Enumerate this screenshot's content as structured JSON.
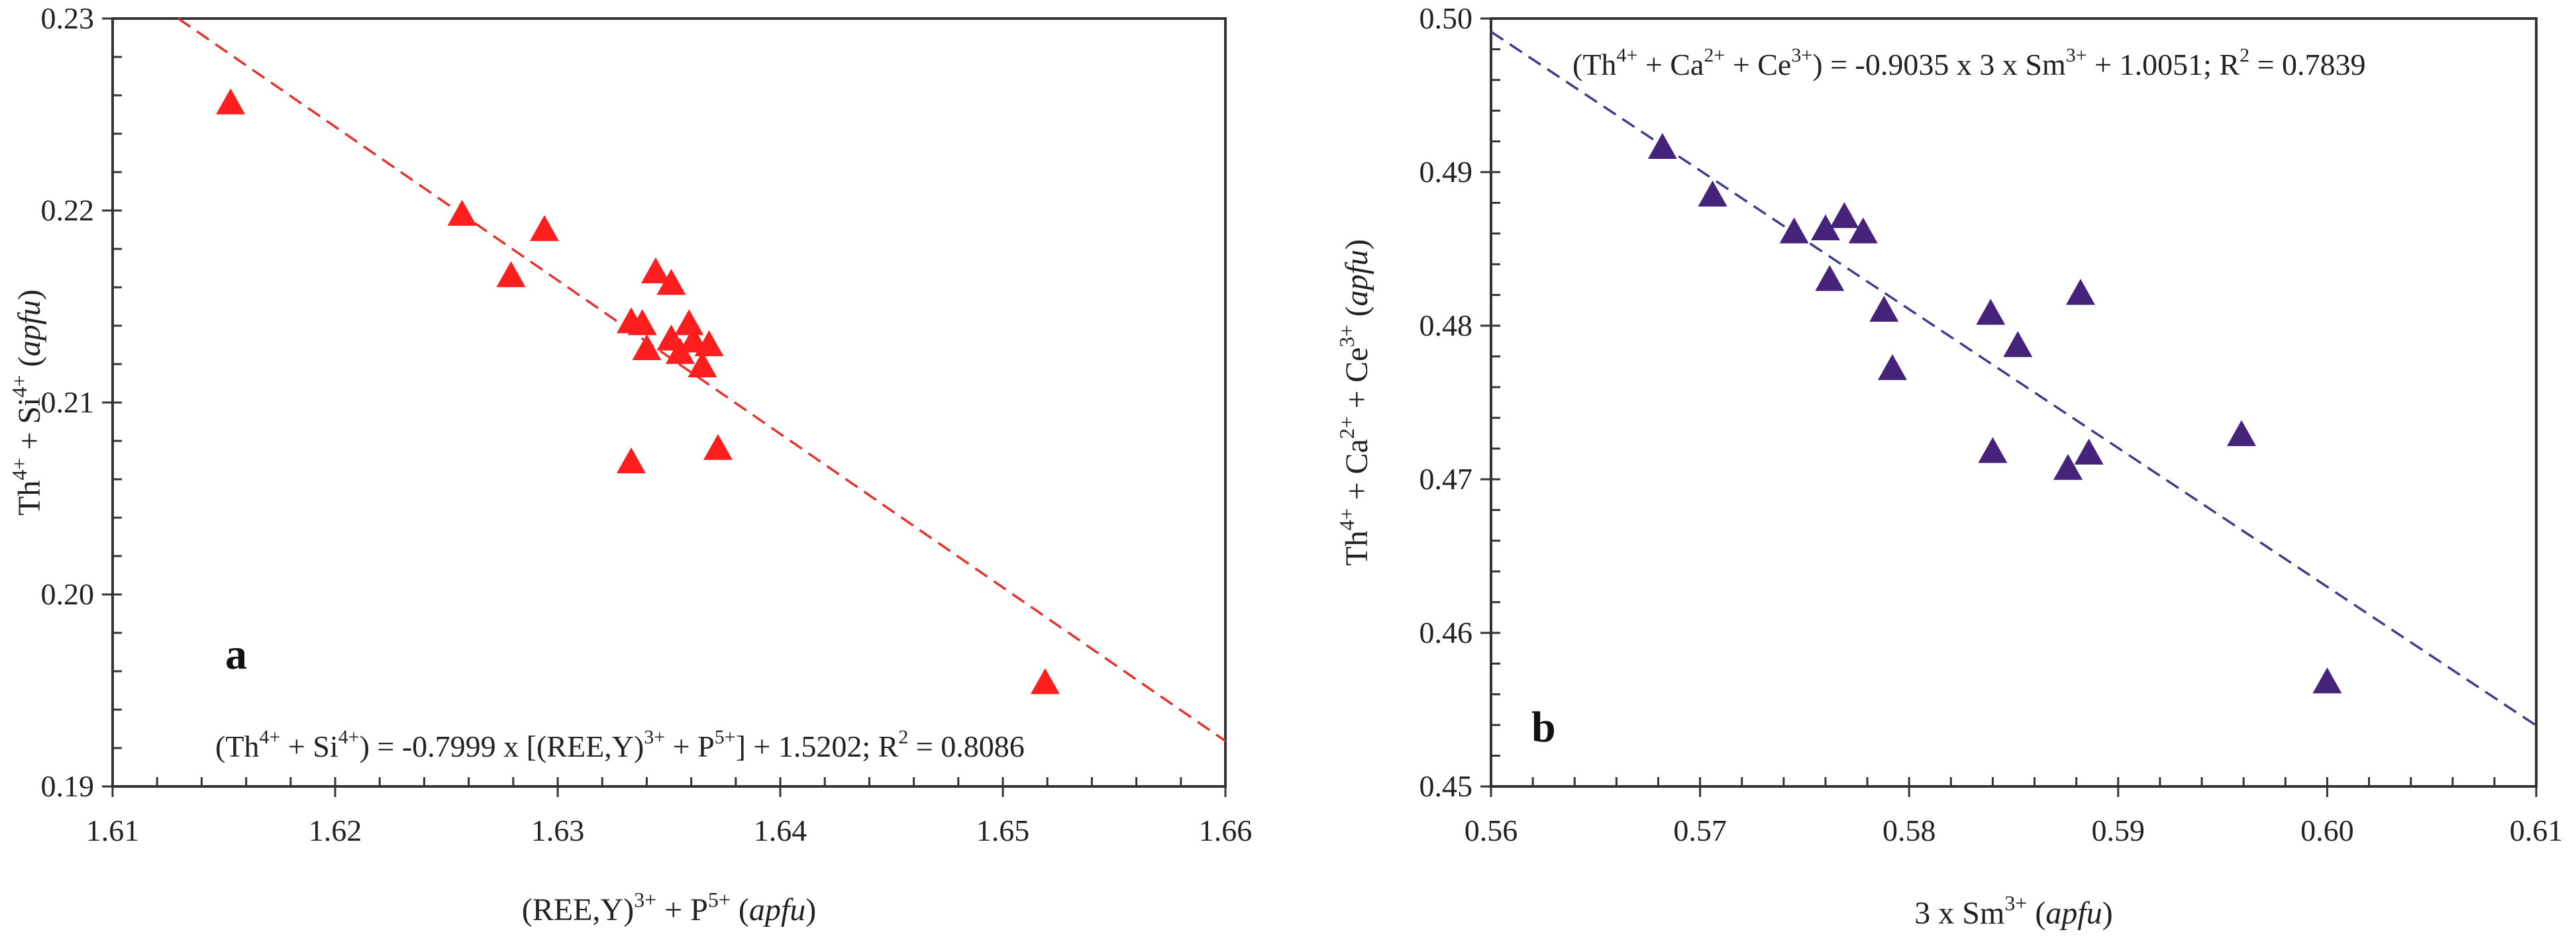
{
  "chart_data": [
    {
      "type": "scatter",
      "panel_label": "a",
      "xlabel": {
        "base": "(REE,Y)",
        "sup1": "3+",
        "mid": " + P",
        "sup2": "5+",
        "unit": "apfu"
      },
      "ylabel": {
        "base1": "Th",
        "sup1": "4+",
        "mid": " + Si",
        "sup2": "4+",
        "unit": "apfu"
      },
      "xlim": [
        1.61,
        1.66
      ],
      "ylim": [
        0.19,
        0.23
      ],
      "xticks": [
        1.61,
        1.62,
        1.63,
        1.64,
        1.65,
        1.66
      ],
      "xtick_labels": [
        "1.61",
        "1.62",
        "1.63",
        "1.64",
        "1.65",
        "1.66"
      ],
      "yticks": [
        0.19,
        0.2,
        0.21,
        0.22,
        0.23
      ],
      "ytick_labels": [
        "0.19",
        "0.20",
        "0.21",
        "0.22",
        "0.23"
      ],
      "x_minor_step": 0.002,
      "y_minor_step": 0.002,
      "grid": false,
      "marker": "triangle",
      "marker_color": "#ff1e1e",
      "fit_color": "#e8312a",
      "fit": {
        "slope": -0.7999,
        "intercept": 1.5202
      },
      "equation": {
        "p1": "(Th",
        "s1": "4+",
        "p2": " + Si",
        "s2": "4+",
        "p3": ") = -0.7999 x [(REE,Y)",
        "s3": "3+",
        "p4": " + P",
        "s4": "5+",
        "p5": "] + 1.5202; R",
        "s5": "2",
        "p6": " = 0.8086"
      },
      "x": [
        1.6153,
        1.6257,
        1.6279,
        1.6294,
        1.6333,
        1.6333,
        1.6338,
        1.634,
        1.6344,
        1.6351,
        1.6351,
        1.6355,
        1.6359,
        1.6361,
        1.6365,
        1.6368,
        1.6372,
        1.6519
      ],
      "y": [
        0.2256,
        0.2198,
        0.2166,
        0.219,
        0.2142,
        0.2069,
        0.2141,
        0.2128,
        0.2168,
        0.2133,
        0.2162,
        0.2126,
        0.2141,
        0.2132,
        0.2119,
        0.213,
        0.2076,
        0.1954
      ]
    },
    {
      "type": "scatter",
      "panel_label": "b",
      "xlabel": {
        "base": "3 x Sm",
        "sup1": "3+",
        "unit": "apfu"
      },
      "ylabel": {
        "base1": "Th",
        "sup1": "4+",
        "mid": " + Ca",
        "sup2": "2+",
        "mid2": " + Ce",
        "sup3": "3+",
        "unit": "apfu"
      },
      "xlim": [
        0.56,
        0.61
      ],
      "ylim": [
        0.45,
        0.5
      ],
      "xticks": [
        0.56,
        0.57,
        0.58,
        0.59,
        0.6,
        0.61
      ],
      "xtick_labels": [
        "0.56",
        "0.57",
        "0.58",
        "0.59",
        "0.60",
        "0.61"
      ],
      "yticks": [
        0.45,
        0.46,
        0.47,
        0.48,
        0.49,
        0.5
      ],
      "ytick_labels": [
        "0.45",
        "0.46",
        "0.47",
        "0.48",
        "0.49",
        "0.50"
      ],
      "x_minor_step": 0.002,
      "y_minor_step": 0.002,
      "grid": false,
      "marker": "triangle",
      "marker_color": "#46237a",
      "fit_color": "#3d3d8f",
      "fit": {
        "slope": -0.9035,
        "intercept": 1.0051
      },
      "equation": {
        "p1": "(Th",
        "s1": "4+",
        "p2": " + Ca",
        "s2": "2+",
        "p3": " + Ce",
        "s3": "3+",
        "p4": ") = -0.9035 x 3 x Sm",
        "s4": "3+",
        "p5": " + 1.0051; R",
        "s5": "2",
        "p6": " = 0.7839"
      },
      "x": [
        0.5682,
        0.5706,
        0.5745,
        0.576,
        0.5762,
        0.5769,
        0.5778,
        0.5788,
        0.5792,
        0.5839,
        0.584,
        0.5852,
        0.5876,
        0.5882,
        0.5886,
        0.5959,
        0.6
      ],
      "y": [
        0.4916,
        0.4885,
        0.4861,
        0.4863,
        0.483,
        0.4871,
        0.4861,
        0.481,
        0.4772,
        0.4808,
        0.4718,
        0.4787,
        0.4707,
        0.4821,
        0.4717,
        0.4729,
        0.4568
      ]
    }
  ]
}
